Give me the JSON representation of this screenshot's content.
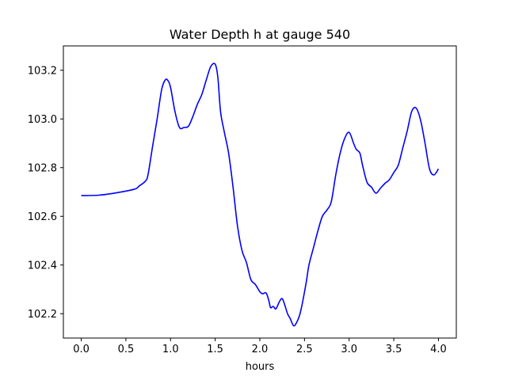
{
  "chart_data": {
    "type": "line",
    "title": "Water Depth h at gauge 540",
    "xlabel": "hours",
    "ylabel": "",
    "xlim": [
      -0.2,
      4.2
    ],
    "ylim": [
      102.1,
      103.3
    ],
    "xticks": [
      0.0,
      0.5,
      1.0,
      1.5,
      2.0,
      2.5,
      3.0,
      3.5,
      4.0
    ],
    "xtick_labels": [
      "0.0",
      "0.5",
      "1.0",
      "1.5",
      "2.0",
      "2.5",
      "3.0",
      "3.5",
      "4.0"
    ],
    "yticks": [
      102.2,
      102.4,
      102.6,
      102.8,
      103.0,
      103.2
    ],
    "ytick_labels": [
      "102.2",
      "102.4",
      "102.6",
      "102.8",
      "103.0",
      "103.2"
    ],
    "grid": false,
    "series": [
      {
        "color": "#0000ff",
        "x": [
          0.0,
          0.2,
          0.4,
          0.6,
          0.65,
          0.72,
          0.75,
          0.8,
          0.85,
          0.9,
          0.94,
          0.97,
          1.0,
          1.05,
          1.1,
          1.15,
          1.2,
          1.25,
          1.3,
          1.35,
          1.4,
          1.45,
          1.5,
          1.53,
          1.56,
          1.6,
          1.65,
          1.7,
          1.75,
          1.8,
          1.85,
          1.9,
          1.95,
          2.0,
          2.03,
          2.07,
          2.1,
          2.12,
          2.15,
          2.18,
          2.22,
          2.25,
          2.28,
          2.31,
          2.34,
          2.38,
          2.42,
          2.45,
          2.48,
          2.52,
          2.55,
          2.6,
          2.65,
          2.7,
          2.75,
          2.8,
          2.85,
          2.9,
          2.95,
          3.0,
          3.05,
          3.08,
          3.12,
          3.15,
          3.2,
          3.25,
          3.3,
          3.35,
          3.4,
          3.45,
          3.5,
          3.55,
          3.6,
          3.65,
          3.7,
          3.75,
          3.8,
          3.85,
          3.9,
          3.95,
          4.0
        ],
        "y": [
          102.685,
          102.687,
          102.697,
          102.712,
          102.725,
          102.745,
          102.775,
          102.89,
          103.0,
          103.12,
          103.16,
          103.158,
          103.13,
          103.03,
          102.965,
          102.965,
          102.97,
          103.01,
          103.06,
          103.1,
          103.16,
          103.215,
          103.225,
          103.17,
          103.03,
          102.95,
          102.86,
          102.72,
          102.56,
          102.46,
          102.41,
          102.34,
          102.32,
          102.29,
          102.282,
          102.285,
          102.255,
          102.225,
          102.23,
          102.22,
          102.25,
          102.262,
          102.235,
          102.2,
          102.18,
          102.15,
          102.17,
          102.2,
          102.25,
          102.33,
          102.4,
          102.47,
          102.54,
          102.6,
          102.625,
          102.66,
          102.77,
          102.86,
          102.92,
          102.945,
          102.9,
          102.875,
          102.86,
          102.81,
          102.74,
          102.72,
          102.695,
          102.715,
          102.735,
          102.75,
          102.78,
          102.81,
          102.88,
          102.95,
          103.03,
          103.045,
          102.995,
          102.9,
          102.795,
          102.77,
          102.795
        ]
      }
    ]
  }
}
